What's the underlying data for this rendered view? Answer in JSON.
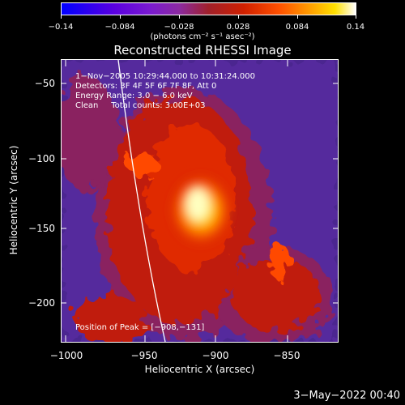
{
  "colorbar": {
    "gradient_colors": [
      "#0000ff",
      "#7a1ad0",
      "#a0202a",
      "#ff5000",
      "#ffe000",
      "#ffffff"
    ],
    "tick_labels": [
      "−0.14",
      "−0.084",
      "−0.028",
      "0.028",
      "0.084",
      "0.14"
    ],
    "units": "(photons cm⁻² s⁻¹ asec⁻²)"
  },
  "plot": {
    "title": "Reconstructed RHESSI Image",
    "time_range": "1−Nov−2005 10:29:44.000 to 10:31:24.000",
    "detectors": "Detectors: 3F 4F 5F 6F 7F 8F, Att 0",
    "energy_range": "Energy Range: 3.0 − 6.0 keV",
    "clean_info": "Clean     Total counts: 3.00E+03",
    "peak_position": "Position of Peak = [−908,−131]",
    "x_axis_label": "Heliocentric X (arcsec)",
    "y_axis_label": "Heliocentric Y (arcsec)",
    "x_ticks": [
      "−1000",
      "−950",
      "−900",
      "−850"
    ],
    "y_ticks": [
      "−50",
      "−100",
      "−150",
      "−200"
    ]
  },
  "footer": {
    "date_stamp": "3−May−2022 00:40"
  }
}
